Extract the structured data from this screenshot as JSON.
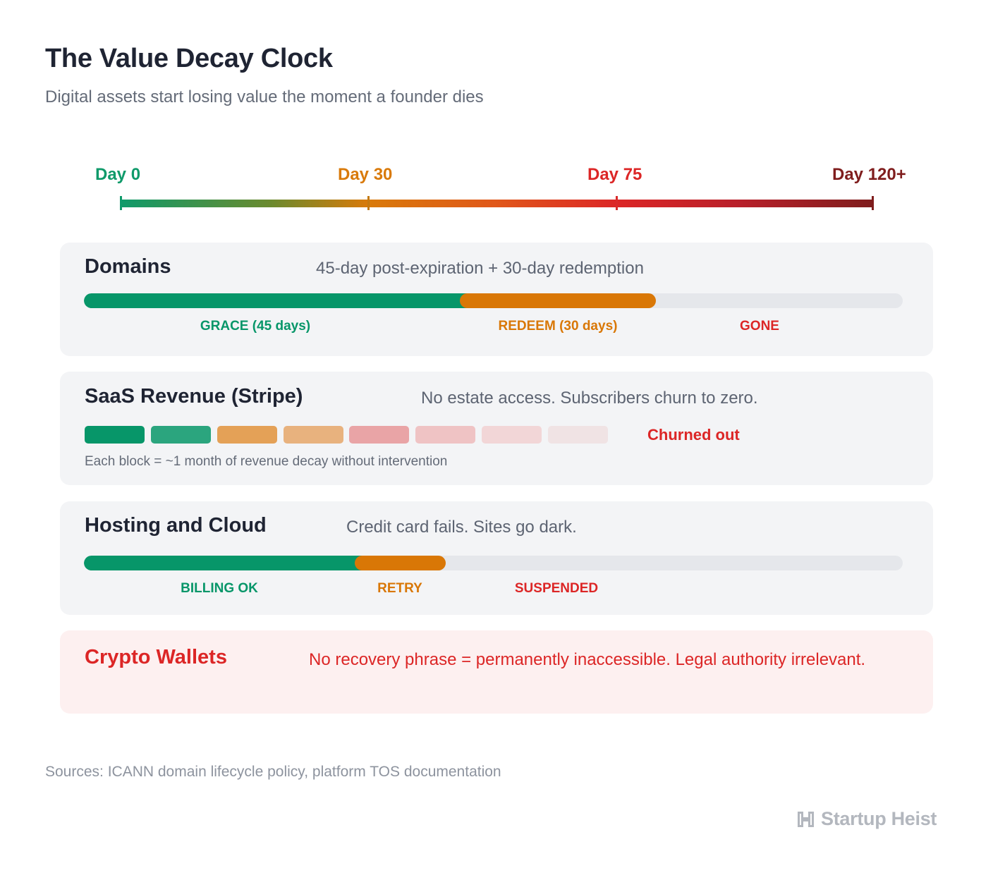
{
  "header": {
    "title": "The Value Decay Clock",
    "subtitle": "Digital assets start losing value the moment a founder dies"
  },
  "timeline": {
    "markers": [
      {
        "label": "Day 0",
        "color": "#0f9a6a"
      },
      {
        "label": "Day 30",
        "color": "#d97a0a"
      },
      {
        "label": "Day 75",
        "color": "#dc2626"
      },
      {
        "label": "Day 120+",
        "color": "#7f1d1d"
      }
    ]
  },
  "domains": {
    "title": "Domains",
    "description": "45-day post-expiration + 30-day redemption",
    "segments": [
      {
        "label": "GRACE (45 days)",
        "color": "#079669"
      },
      {
        "label": "REDEEM (30 days)",
        "color": "#d97706"
      },
      {
        "label": "GONE",
        "color": "#dc2626"
      }
    ]
  },
  "saas": {
    "title": "SaaS Revenue (Stripe)",
    "description": "No estate access. Subscribers churn to zero.",
    "blocks": [
      "#079669",
      "#2ba57e",
      "#e4a157",
      "#e8b27e",
      "#e9a4a6",
      "#efc3c4",
      "#f2d6d7",
      "#f0e3e4"
    ],
    "end_label": "Churned out",
    "note": "Each block = ~1 month of revenue decay without intervention"
  },
  "hosting": {
    "title": "Hosting and Cloud",
    "description": "Credit card fails. Sites go dark.",
    "segments": [
      {
        "label": "BILLING OK",
        "color": "#079669"
      },
      {
        "label": "RETRY",
        "color": "#d97706"
      },
      {
        "label": "SUSPENDED",
        "color": "#dc2626"
      }
    ]
  },
  "crypto": {
    "title": "Crypto Wallets",
    "description": "No recovery phrase = permanently inaccessible. Legal authority irrelevant.",
    "color": "#dc2626"
  },
  "footer": {
    "sources": "Sources: ICANN domain lifecycle policy, platform TOS documentation",
    "brand": "Startup Heist"
  }
}
